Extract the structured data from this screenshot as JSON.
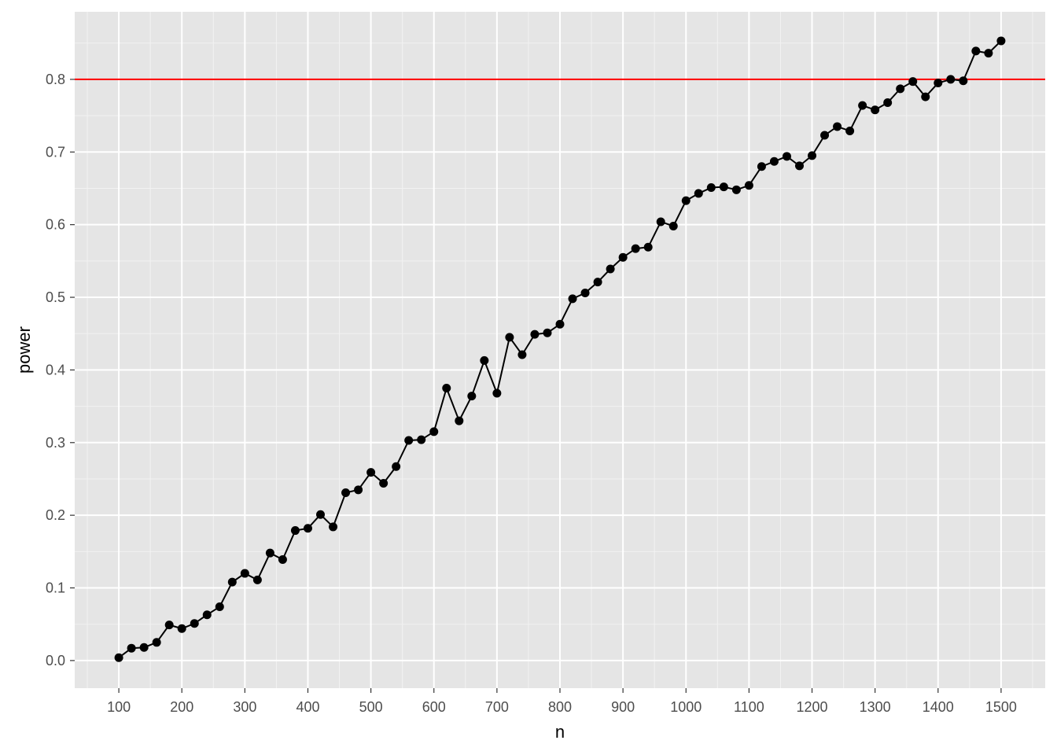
{
  "chart_data": {
    "type": "line",
    "title": "",
    "xlabel": "n",
    "ylabel": "power",
    "xlim": [
      30,
      1570
    ],
    "ylim": [
      -0.038,
      0.893
    ],
    "x_ticks": [
      100,
      200,
      300,
      400,
      500,
      600,
      700,
      800,
      900,
      1000,
      1100,
      1200,
      1300,
      1400,
      1500
    ],
    "x_tick_labels": [
      "100",
      "200",
      "300",
      "400",
      "500",
      "600",
      "700",
      "800",
      "900",
      "1000",
      "1100",
      "1200",
      "1300",
      "1400",
      "1500"
    ],
    "y_ticks": [
      0.0,
      0.1,
      0.2,
      0.3,
      0.4,
      0.5,
      0.6,
      0.7,
      0.8
    ],
    "y_tick_labels": [
      "0.0",
      "0.1",
      "0.2",
      "0.3",
      "0.4",
      "0.5",
      "0.6",
      "0.7",
      "0.8"
    ],
    "grid": true,
    "legend": "none",
    "reference_line": {
      "axis": "y",
      "value": 0.8,
      "color": "#ff0000"
    },
    "series": [
      {
        "color": "#000000",
        "markers": true,
        "x": [
          100,
          120,
          140,
          160,
          180,
          200,
          220,
          240,
          260,
          280,
          300,
          320,
          340,
          360,
          380,
          400,
          420,
          440,
          460,
          480,
          500,
          520,
          540,
          560,
          580,
          600,
          620,
          640,
          660,
          680,
          700,
          720,
          740,
          760,
          780,
          800,
          820,
          840,
          860,
          880,
          900,
          920,
          940,
          960,
          980,
          1000,
          1020,
          1040,
          1060,
          1080,
          1100,
          1120,
          1140,
          1160,
          1180,
          1200,
          1220,
          1240,
          1260,
          1280,
          1300,
          1320,
          1340,
          1360,
          1380,
          1400,
          1420,
          1440,
          1460,
          1480,
          1500
        ],
        "values": [
          0.004,
          0.017,
          0.018,
          0.025,
          0.049,
          0.044,
          0.051,
          0.063,
          0.074,
          0.108,
          0.12,
          0.111,
          0.148,
          0.139,
          0.179,
          0.182,
          0.201,
          0.184,
          0.231,
          0.235,
          0.259,
          0.244,
          0.267,
          0.303,
          0.304,
          0.315,
          0.375,
          0.33,
          0.364,
          0.413,
          0.368,
          0.445,
          0.421,
          0.449,
          0.451,
          0.463,
          0.498,
          0.506,
          0.521,
          0.539,
          0.555,
          0.567,
          0.569,
          0.604,
          0.598,
          0.633,
          0.643,
          0.651,
          0.652,
          0.648,
          0.654,
          0.68,
          0.687,
          0.694,
          0.681,
          0.695,
          0.723,
          0.735,
          0.729,
          0.764,
          0.758,
          0.768,
          0.787,
          0.797,
          0.776,
          0.795,
          0.8,
          0.798,
          0.839,
          0.836,
          0.853
        ]
      }
    ]
  }
}
